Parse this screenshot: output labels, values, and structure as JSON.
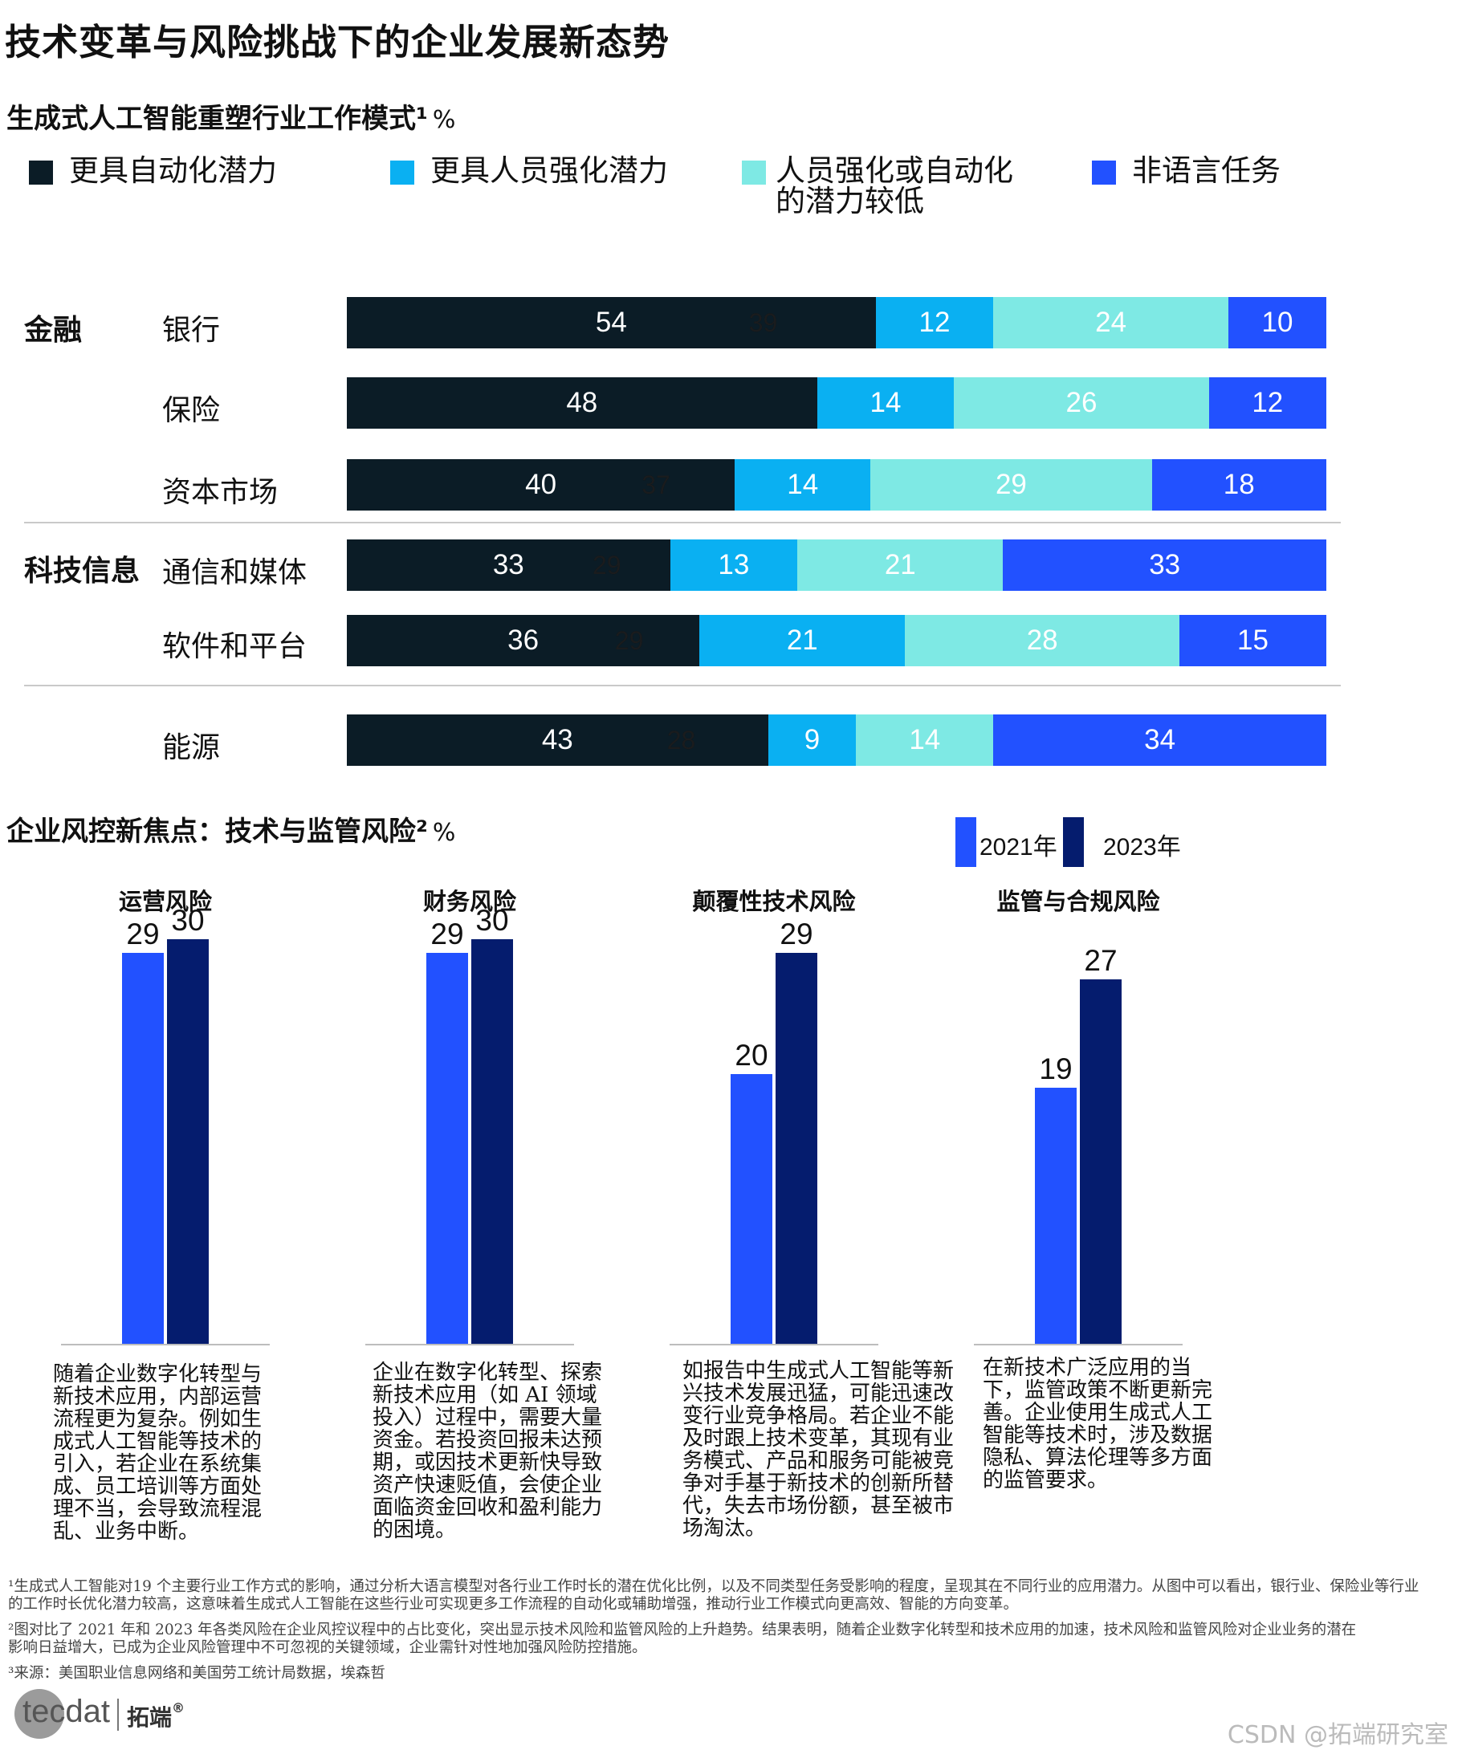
{
  "title": "技术变革与风险挑战下的企业发展新态势",
  "chart1": {
    "subtitle": "生成式人工智能重塑行业工作模式",
    "subtitle_mark": "¹",
    "unit": "%",
    "legend": [
      {
        "label": "更具自动化潜力",
        "color": "#0b1c26"
      },
      {
        "label": "更具人员强化潜力",
        "color": "#0ab0f2"
      },
      {
        "label": "人员强化或自动化的潜力较低",
        "color": "#7ee9e4"
      },
      {
        "label": "非语言任务",
        "color": "#2251ff"
      }
    ],
    "groups": [
      {
        "label": "金融",
        "rows": [
          "银行",
          "保险",
          "资本市场"
        ]
      },
      {
        "label": "科技信息",
        "rows": [
          "通信和媒体",
          "软件和平台"
        ]
      },
      {
        "label": "",
        "rows": [
          "能源"
        ]
      }
    ]
  },
  "chart_data": [
    {
      "type": "bar",
      "orientation": "horizontal",
      "stacked": true,
      "title": "生成式人工智能重塑行业工作模式",
      "unit": "%",
      "categories": [
        "银行",
        "保险",
        "资本市场",
        "通信和媒体",
        "软件和平台",
        "能源"
      ],
      "series": [
        {
          "name": "更具自动化潜力",
          "color": "#0b1c26",
          "values": [
            54,
            48,
            40,
            33,
            36,
            43
          ]
        },
        {
          "name": "更具人员强化潜力",
          "color": "#0ab0f2",
          "values": [
            12,
            14,
            14,
            13,
            21,
            9
          ]
        },
        {
          "name": "人员强化或自动化的潜力较低",
          "color": "#7ee9e4",
          "values": [
            24,
            26,
            29,
            21,
            28,
            14
          ]
        },
        {
          "name": "非语言任务",
          "color": "#2251ff",
          "values": [
            10,
            12,
            18,
            33,
            15,
            34
          ]
        }
      ],
      "overlay_labels": [
        "39",
        "",
        "37",
        "29",
        "29",
        "28"
      ]
    },
    {
      "type": "bar",
      "title": "企业风控新焦点：技术与监管风险",
      "unit": "%",
      "categories": [
        "运营风险",
        "财务风险",
        "颠覆性技术风险",
        "监管与合规风险"
      ],
      "series": [
        {
          "name": "2021年",
          "color": "#2251ff",
          "values": [
            29,
            29,
            20,
            19
          ]
        },
        {
          "name": "2023年",
          "color": "#051c6e",
          "values": [
            30,
            30,
            29,
            27
          ]
        }
      ]
    }
  ],
  "chart2": {
    "subtitle": "企业风控新焦点：技术与监管风险",
    "subtitle_mark": "²",
    "unit": "%",
    "legend": [
      "2021年",
      "2023年"
    ],
    "descriptions": [
      "随着企业数字化转型与新技术应用，内部运营流程更为复杂。例如生成式人工智能等技术的引入，若企业在系统集成、员工培训等方面处理不当，会导致流程混乱、业务中断。",
      "企业在数字化转型、探索新技术应用（如 AI 领域投入）过程中，需要大量资金。若投资回报未达预期，或因技术更新快导致资产快速贬值，会使企业面临资金回收和盈利能力的困境。",
      "如报告中生成式人工智能等新兴技术发展迅猛，可能迅速改变行业竞争格局。若企业不能及时跟上技术变革，其现有业务模式、产品和服务可能被竞争对手基于新技术的创新所替代，失去市场份额，甚至被市场淘汰。",
      "在新技术广泛应用的当下，监管政策不断更新完善。企业使用生成式人工智能等技术时，涉及数据隐私、算法伦理等多方面的监管要求。"
    ]
  },
  "footnotes": [
    "¹生成式人工智能对19 个主要行业工作方式的影响，通过分析大语言模型对各行业工作时长的潜在优化比例，以及不同类型任务受影响的程度，呈现其在不同行业的应用潜力。从图中可以看出，银行业、保险业等行业的工作时长优化潜力较高，这意味着生成式人工智能在这些行业可实现更多工作流程的自动化或辅助增强，推动行业工作模式向更高效、智能的方向变革。",
    "²图对比了 2021 年和 2023 年各类风险在企业风控议程中的占比变化，突出显示技术风险和监管风险的上升趋势。结果表明，随着企业数字化转型和技术应用的加速，技术风险和监管风险对企业业务的潜在影响日益增大，已成为企业风险管理中不可忽视的关键领域，企业需针对性地加强风险防控措施。",
    "³来源：美国职业信息网络和美国劳工统计局数据，埃森哲"
  ],
  "logo": {
    "text": "tecdat",
    "brand": "拓端",
    "mark": "®"
  },
  "watermark": "CSDN @拓端研究室"
}
